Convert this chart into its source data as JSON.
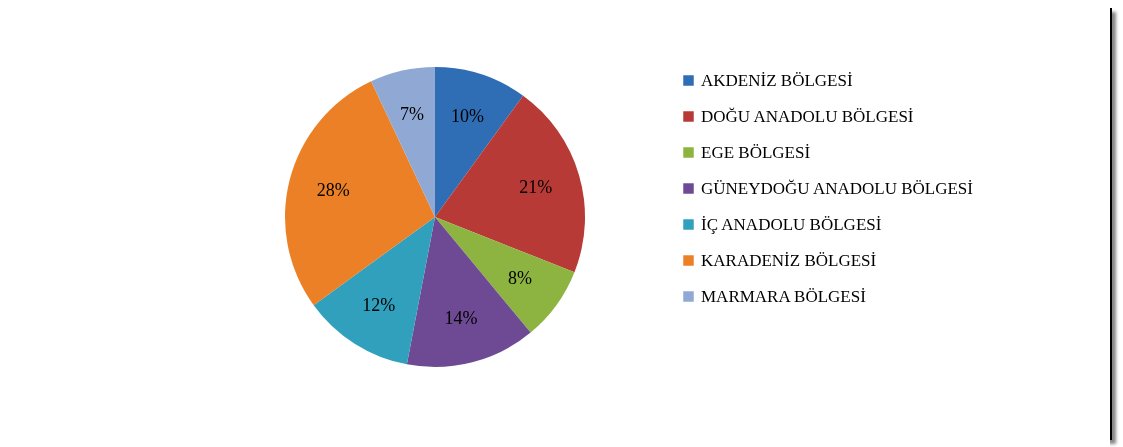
{
  "chart_data": {
    "type": "pie",
    "categories": [
      "AKDENİZ BÖLGESİ",
      "DOĞU ANADOLU BÖLGESİ",
      "EGE BÖLGESİ",
      "GÜNEYDOĞU ANADOLU BÖLGESİ",
      "İÇ ANADOLU BÖLGESİ",
      "KARADENİZ BÖLGESİ",
      "MARMARA BÖLGESİ"
    ],
    "values": [
      10,
      21,
      8,
      14,
      12,
      28,
      7
    ],
    "value_labels": [
      "10%",
      "21%",
      "8%",
      "14%",
      "12%",
      "28%",
      "7%"
    ],
    "colors": [
      "#2f6db5",
      "#b83a36",
      "#8db441",
      "#6f4a94",
      "#31a0bd",
      "#eb8026",
      "#8fa9d4"
    ],
    "legend": "right"
  }
}
